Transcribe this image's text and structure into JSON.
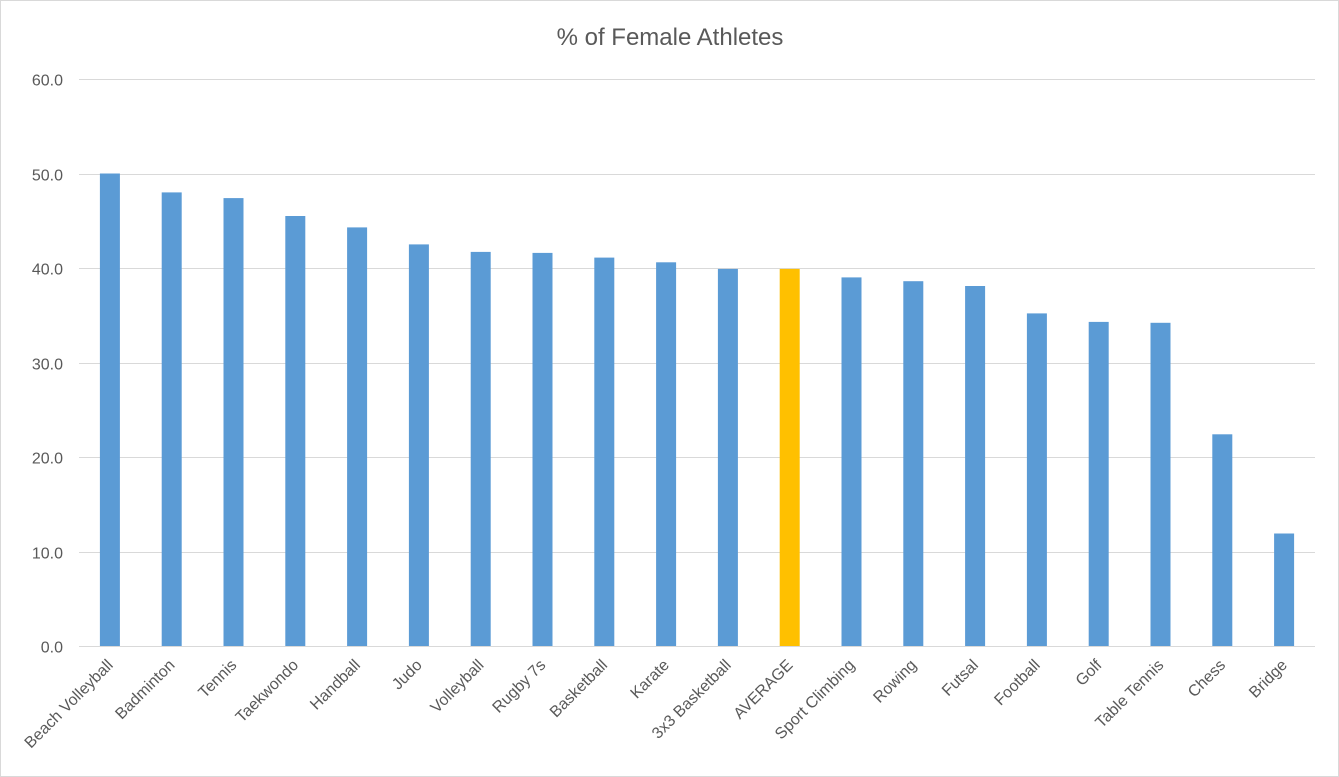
{
  "chart_data": {
    "type": "bar",
    "title": "% of Female Athletes",
    "xlabel": "",
    "ylabel": "",
    "ylim": [
      0,
      60
    ],
    "yticks": [
      0,
      10,
      20,
      30,
      40,
      50,
      60
    ],
    "ytick_labels": [
      "0.0",
      "10.0",
      "20.0",
      "30.0",
      "40.0",
      "50.0",
      "60.0"
    ],
    "grid": true,
    "legend": "none",
    "categories": [
      "Beach Volleyball",
      "Badminton",
      "Tennis",
      "Taekwondo",
      "Handball",
      "Judo",
      "Volleyball",
      "Rugby 7s",
      "Basketball",
      "Karate",
      "3x3 Basketball",
      "AVERAGE",
      "Sport Climbing",
      "Rowing",
      "Futsal",
      "Football",
      "Golf",
      "Table Tennis",
      "Chess",
      "Bridge"
    ],
    "values": [
      50.0,
      48.0,
      47.4,
      45.5,
      44.3,
      42.5,
      41.7,
      41.6,
      41.1,
      40.6,
      39.9,
      39.9,
      39.0,
      38.6,
      38.1,
      35.2,
      34.3,
      34.2,
      22.4,
      11.9
    ],
    "bar_color": "#5b9bd5",
    "highlight_color": "#ffc000",
    "highlight_category": "AVERAGE"
  }
}
